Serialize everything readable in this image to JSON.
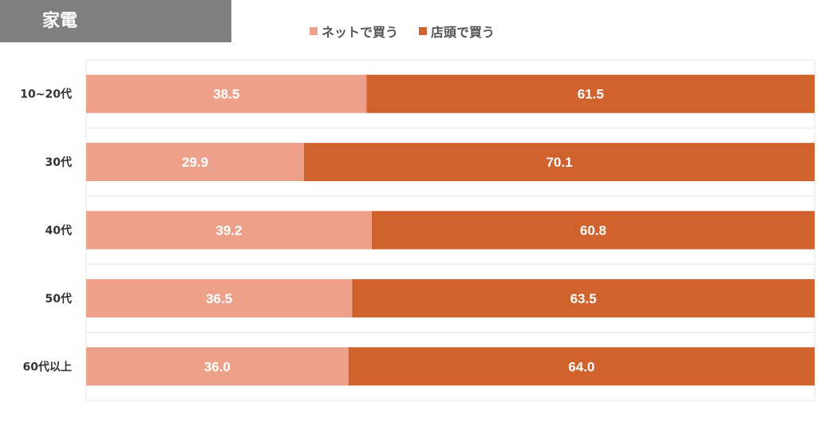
{
  "chart_data": {
    "type": "bar",
    "orientation": "horizontal",
    "stacked": true,
    "title": "家電",
    "categories": [
      "10~20代",
      "30代",
      "40代",
      "50代",
      "60代以上"
    ],
    "series": [
      {
        "name": "ネットで買う",
        "color": "#eda18a",
        "values": [
          38.5,
          29.9,
          39.2,
          36.5,
          36.0
        ]
      },
      {
        "name": "店頭で買う",
        "color": "#d0632d",
        "values": [
          61.5,
          70.1,
          60.8,
          63.5,
          64.0
        ]
      }
    ],
    "value_labels": [
      [
        "38.5",
        "29.9",
        "39.2",
        "36.5",
        "36.0"
      ],
      [
        "61.5",
        "70.1",
        "60.8",
        "63.5",
        "64.0"
      ]
    ],
    "xlim": [
      0,
      100
    ],
    "legend_position": "top",
    "grid": true
  }
}
